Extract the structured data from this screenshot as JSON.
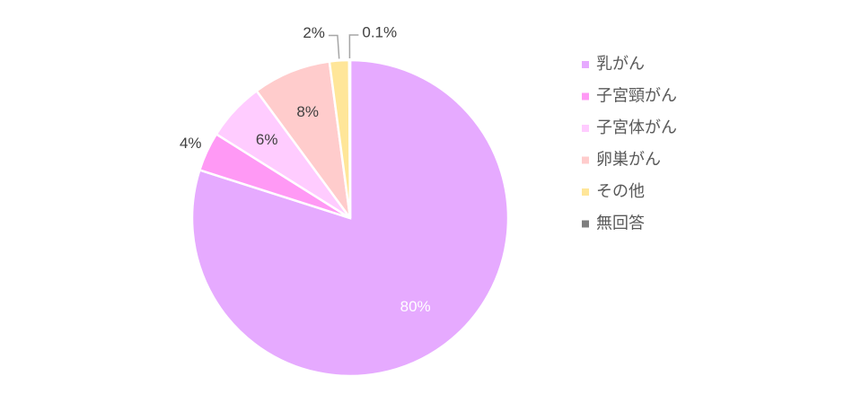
{
  "chart_data": {
    "type": "pie",
    "categories": [
      "乳がん",
      "子宮頸がん",
      "子宮体がん",
      "卵巣がん",
      "その他",
      "無回答"
    ],
    "values": [
      80,
      4,
      6,
      8,
      2,
      0.1
    ],
    "value_labels": [
      "80%",
      "4%",
      "6%",
      "8%",
      "2%",
      "0.1%"
    ],
    "colors": [
      "#e6aaff",
      "#ff99f5",
      "#ffccff",
      "#ffcccc",
      "#ffe699",
      "#7f7f7f"
    ],
    "legend": "right"
  }
}
